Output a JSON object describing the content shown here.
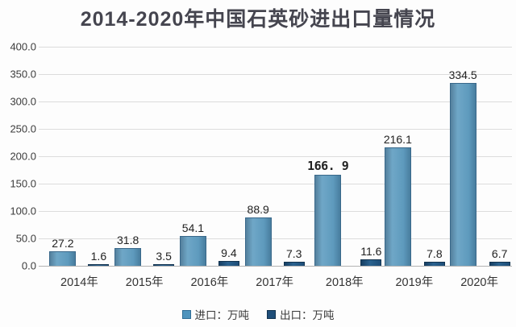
{
  "title": "2014-2020年中国石英砂进出口量情况",
  "legend": {
    "import_label": "进口：万吨",
    "export_label": "出口：万吨"
  },
  "colors": {
    "import_bar": "#5e9abd",
    "export_bar": "#1f4e79",
    "gridline": "#dcdcdc",
    "title_text": "#45454f"
  },
  "chart_data": {
    "type": "bar",
    "title": "2014-2020年中国石英砂进出口量情况",
    "categories": [
      "2014年",
      "2015年",
      "2016年",
      "2017年",
      "2018年",
      "2019年",
      "2020年"
    ],
    "series": [
      {
        "name": "进口",
        "unit": "万吨",
        "values": [
          27.2,
          31.8,
          54.1,
          88.9,
          166.9,
          216.1,
          334.5
        ],
        "labels": [
          "27.2",
          "31.8",
          "54.1",
          "88.9",
          "166. 9",
          "216.1",
          "334.5"
        ],
        "bold_label_indexes": [
          4
        ]
      },
      {
        "name": "出口",
        "unit": "万吨",
        "values": [
          1.6,
          3.5,
          9.4,
          7.3,
          11.6,
          7.8,
          6.7
        ],
        "labels": [
          "1.6",
          "3.5",
          "9.4",
          "7.3",
          "11.6",
          "7.8",
          "6.7"
        ],
        "bold_label_indexes": []
      }
    ],
    "xlabel": "",
    "ylabel": "",
    "ylim": [
      0,
      400
    ],
    "ytick_step": 50,
    "yticks": [
      "400.0",
      "350.0",
      "300.0",
      "250.0",
      "200.0",
      "150.0",
      "100.0",
      "50.0",
      "0.0"
    ],
    "grid": true,
    "legend_position": "bottom"
  }
}
